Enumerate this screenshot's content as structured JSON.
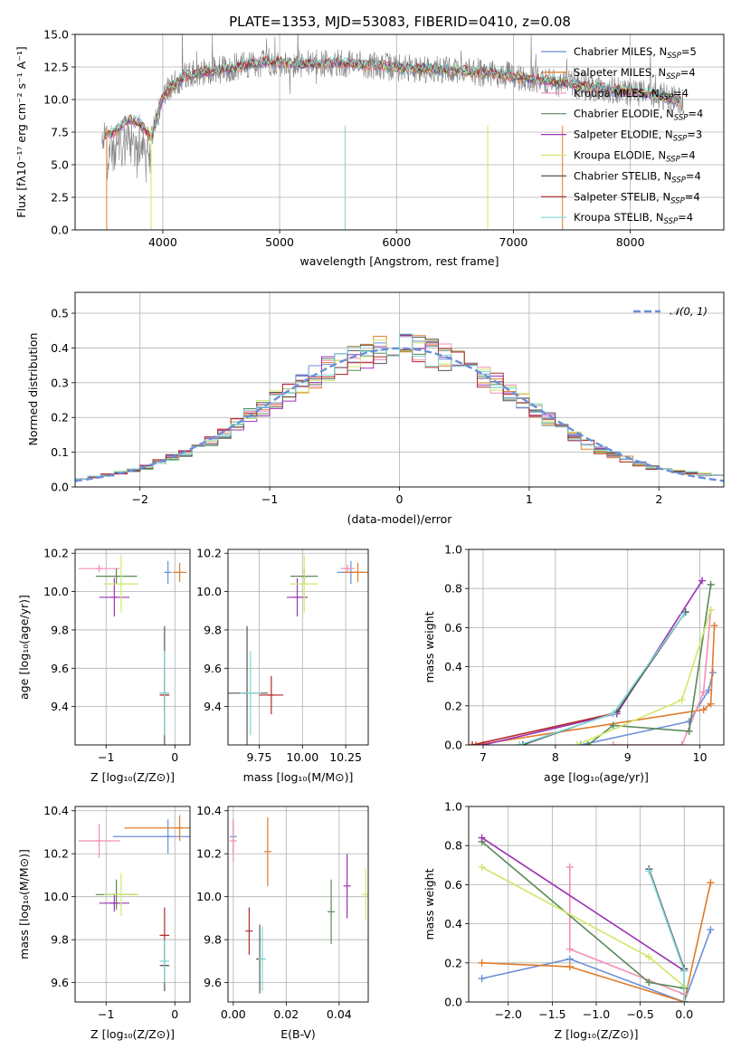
{
  "header": {
    "title": "PLATE=1353, MJD=53083, FIBERID=0410, z=0.08"
  },
  "colors": {
    "Chabrier MILES": "#6a8fd8",
    "Salpeter MILES": "#e07b2a",
    "Kroupa MILES": "#f28fb8",
    "Chabrier ELODIE": "#5a8a5a",
    "Salpeter ELODIE": "#9b33b3",
    "Kroupa ELODIE": "#cfe86a",
    "Chabrier STELIB": "#555555",
    "Salpeter STELIB": "#b52a2a",
    "Kroupa STELIB": "#7fd6d6",
    "data": "#808080",
    "normal": "#6a8fd8",
    "grid": "#b0b0b0"
  },
  "chart_data": [
    {
      "type": "line",
      "title": "PLATE=1353, MJD=53083, FIBERID=0410, z=0.08",
      "xlabel": "wavelength [Angstrom, rest frame]",
      "ylabel": "Flux [fλ10⁻¹⁷ erg cm⁻² s⁻¹ A⁻¹]",
      "xlim": [
        3250,
        8800
      ],
      "ylim": [
        0,
        15
      ],
      "xticks": [
        4000,
        5000,
        6000,
        7000,
        8000
      ],
      "yticks": [
        0.0,
        2.5,
        5.0,
        7.5,
        10.0,
        12.5,
        15.0
      ],
      "legend_position": "top-right",
      "series": [
        {
          "name": "Chabrier MILES, N_SSP=5",
          "legend_main": "Chabrier MILES, N",
          "legend_sub": "SSP",
          "legend_tail": "=5"
        },
        {
          "name": "Salpeter MILES, N_SSP=4",
          "legend_main": "Salpeter MILES, N",
          "legend_sub": "SSP",
          "legend_tail": "=4"
        },
        {
          "name": "Kroupa MILES, N_SSP=4",
          "legend_main": "Kroupa MILES, N",
          "legend_sub": "SSP",
          "legend_tail": "=4"
        },
        {
          "name": "Chabrier ELODIE, N_SSP=4",
          "legend_main": "Chabrier ELODIE, N",
          "legend_sub": "SSP",
          "legend_tail": "=4"
        },
        {
          "name": "Salpeter ELODIE, N_SSP=3",
          "legend_main": "Salpeter ELODIE, N",
          "legend_sub": "SSP",
          "legend_tail": "=3"
        },
        {
          "name": "Kroupa ELODIE, N_SSP=4",
          "legend_main": "Kroupa ELODIE, N",
          "legend_sub": "SSP",
          "legend_tail": "=4"
        },
        {
          "name": "Chabrier STELIB, N_SSP=4",
          "legend_main": "Chabrier STELIB, N",
          "legend_sub": "SSP",
          "legend_tail": "=4"
        },
        {
          "name": "Salpeter STELIB, N_SSP=4",
          "legend_main": "Salpeter STELIB, N",
          "legend_sub": "SSP",
          "legend_tail": "=4"
        },
        {
          "name": "Kroupa STELIB, N_SSP=4",
          "legend_main": "Kroupa STELIB, N",
          "legend_sub": "SSP",
          "legend_tail": "=4"
        }
      ],
      "continuum": {
        "x": [
          3500,
          3600,
          3700,
          3800,
          3900,
          4000,
          4100,
          4200,
          4300,
          4500,
          4700,
          4900,
          5200,
          5500,
          5800,
          6100,
          6400,
          6700,
          7000,
          7300,
          7600,
          7900,
          8100,
          8300,
          8450
        ],
        "y": [
          7.2,
          7.6,
          8.5,
          8.2,
          7.0,
          10.2,
          11.2,
          11.8,
          12.0,
          12.3,
          12.6,
          12.9,
          12.7,
          12.8,
          12.6,
          12.4,
          12.3,
          12.1,
          11.8,
          11.4,
          11.0,
          10.7,
          10.5,
          10.2,
          9.8
        ]
      }
    },
    {
      "type": "step",
      "xlabel": "(data-model)/error",
      "ylabel": "Normed distribution",
      "xlim": [
        -2.5,
        2.5
      ],
      "ylim": [
        0,
        0.56
      ],
      "xticks": [
        -2,
        -1,
        0,
        1,
        2
      ],
      "yticks": [
        0.0,
        0.1,
        0.2,
        0.3,
        0.4,
        0.5
      ],
      "legend": "𝒩(0, 1)",
      "legend_position": "top-right",
      "normal_reference": {
        "mean": 0,
        "std": 1
      },
      "bin_width": 0.1,
      "histogram_shape": {
        "x": [
          -2.5,
          -2.0,
          -1.5,
          -1.0,
          -0.5,
          0.0,
          0.5,
          1.0,
          1.5,
          2.0,
          2.5
        ],
        "y": [
          0.02,
          0.05,
          0.12,
          0.24,
          0.35,
          0.41,
          0.36,
          0.23,
          0.11,
          0.05,
          0.03
        ]
      }
    },
    {
      "type": "errorbar",
      "xlabel": "Z [log₁₀(Z/Z⊙)]",
      "ylabel": "age  [log₁₀(age/yr)]",
      "xlim": [
        -1.45,
        0.22
      ],
      "ylim": [
        9.2,
        10.22
      ],
      "xticks": [
        -1,
        0
      ],
      "yticks": [
        9.4,
        9.6,
        9.8,
        10.0,
        10.2
      ],
      "points": [
        {
          "series": "Chabrier MILES",
          "x": -0.1,
          "y": 10.1,
          "xerr": 0.05,
          "yerr": 0.06
        },
        {
          "series": "Salpeter MILES",
          "x": 0.07,
          "y": 10.1,
          "xerr": 0.1,
          "yerr": 0.05
        },
        {
          "series": "Kroupa MILES",
          "x": -1.1,
          "y": 10.12,
          "xerr": 0.3,
          "yerr": 0.02
        },
        {
          "series": "Chabrier ELODIE",
          "x": -0.85,
          "y": 10.08,
          "xerr": 0.3,
          "yerr": 0.04
        },
        {
          "series": "Salpeter ELODIE",
          "x": -0.88,
          "y": 9.97,
          "xerr": 0.22,
          "yerr": 0.1
        },
        {
          "series": "Kroupa ELODIE",
          "x": -0.78,
          "y": 10.04,
          "xerr": 0.25,
          "yerr": 0.15
        },
        {
          "series": "Chabrier STELIB",
          "x": -0.15,
          "y": 9.47,
          "xerr": 0.07,
          "yerr": 0.35
        },
        {
          "series": "Salpeter STELIB",
          "x": -0.15,
          "y": 9.46,
          "xerr": 0.07,
          "yerr": 0.1
        },
        {
          "series": "Kroupa STELIB",
          "x": -0.15,
          "y": 9.47,
          "xerr": 0.07,
          "yerr": 0.22
        }
      ]
    },
    {
      "type": "errorbar",
      "xlabel": "mass [log₁₀(M/M⊙)]",
      "xlim": [
        9.57,
        10.38
      ],
      "ylim": [
        9.2,
        10.22
      ],
      "xticks": [
        9.75,
        10.0,
        10.25
      ],
      "xticklabels": [
        "9.75",
        "10.00",
        "10.25"
      ],
      "yticks": [
        9.4,
        9.6,
        9.8,
        10.0,
        10.2
      ],
      "points": [
        {
          "series": "Chabrier MILES",
          "x": 10.28,
          "y": 10.1,
          "xerr": 0.08,
          "yerr": 0.06
        },
        {
          "series": "Salpeter MILES",
          "x": 10.32,
          "y": 10.1,
          "xerr": 0.08,
          "yerr": 0.05
        },
        {
          "series": "Kroupa MILES",
          "x": 10.26,
          "y": 10.12,
          "xerr": 0.04,
          "yerr": 0.02
        },
        {
          "series": "Chabrier ELODIE",
          "x": 10.01,
          "y": 10.08,
          "xerr": 0.08,
          "yerr": 0.04
        },
        {
          "series": "Salpeter ELODIE",
          "x": 9.97,
          "y": 9.97,
          "xerr": 0.06,
          "yerr": 0.1
        },
        {
          "series": "Kroupa ELODIE",
          "x": 10.01,
          "y": 10.04,
          "xerr": 0.08,
          "yerr": 0.15
        },
        {
          "series": "Chabrier STELIB",
          "x": 9.68,
          "y": 9.47,
          "xerr": 0.12,
          "yerr": 0.35
        },
        {
          "series": "Salpeter STELIB",
          "x": 9.82,
          "y": 9.46,
          "xerr": 0.07,
          "yerr": 0.1
        },
        {
          "series": "Kroupa STELIB",
          "x": 9.7,
          "y": 9.47,
          "xerr": 0.06,
          "yerr": 0.22
        }
      ]
    },
    {
      "type": "line",
      "xlabel": "age  [log₁₀(age/yr)]",
      "ylabel": "mass weight",
      "xlim": [
        6.8,
        10.33
      ],
      "ylim": [
        0,
        1.0
      ],
      "xticks": [
        7,
        8,
        9,
        10
      ],
      "yticks": [
        0.0,
        0.2,
        0.4,
        0.6,
        0.8,
        1.0
      ],
      "series": [
        {
          "name": "Chabrier MILES",
          "x": [
            8.35,
            9.85,
            10.12,
            10.18
          ],
          "y": [
            0.0,
            0.12,
            0.28,
            0.37
          ]
        },
        {
          "name": "Salpeter MILES",
          "x": [
            6.9,
            10.05,
            10.15,
            10.2
          ],
          "y": [
            0.0,
            0.18,
            0.21,
            0.61
          ]
        },
        {
          "name": "Kroupa MILES",
          "x": [
            8.8,
            9.75,
            10.05,
            10.15
          ],
          "y": [
            0.0,
            0.0,
            0.27,
            0.69
          ]
        },
        {
          "name": "Chabrier ELODIE",
          "x": [
            8.45,
            8.8,
            9.85,
            10.15
          ],
          "y": [
            0.0,
            0.1,
            0.07,
            0.82
          ]
        },
        {
          "name": "Salpeter ELODIE",
          "x": [
            7.0,
            8.85,
            10.03
          ],
          "y": [
            0.0,
            0.16,
            0.84
          ]
        },
        {
          "name": "Kroupa ELODIE",
          "x": [
            8.3,
            9.75,
            10.15
          ],
          "y": [
            0.0,
            0.23,
            0.69
          ]
        },
        {
          "name": "Chabrier STELIB",
          "x": [
            7.55,
            8.85,
            9.8
          ],
          "y": [
            0.0,
            0.17,
            0.68
          ]
        },
        {
          "name": "Salpeter STELIB",
          "x": [
            6.85,
            8.8
          ],
          "y": [
            0.0,
            0.16
          ]
        },
        {
          "name": "Kroupa STELIB",
          "x": [
            7.5,
            8.8,
            9.78
          ],
          "y": [
            0.0,
            0.16,
            0.67
          ]
        }
      ]
    },
    {
      "type": "errorbar",
      "xlabel": "Z [log₁₀(Z/Z⊙)]",
      "ylabel": "mass [log₁₀(M/M⊙)]",
      "xlim": [
        -1.45,
        0.22
      ],
      "ylim": [
        9.51,
        10.42
      ],
      "xticks": [
        -1,
        0
      ],
      "yticks": [
        9.6,
        9.8,
        10.0,
        10.2,
        10.4
      ],
      "points": [
        {
          "series": "Chabrier MILES",
          "x": -0.1,
          "y": 10.28,
          "xerr": 0.8,
          "yerr": 0.08
        },
        {
          "series": "Salpeter MILES",
          "x": 0.07,
          "y": 10.32,
          "xerr": 0.8,
          "yerr": 0.06
        },
        {
          "series": "Kroupa MILES",
          "x": -1.1,
          "y": 10.26,
          "xerr": 0.3,
          "yerr": 0.08
        },
        {
          "series": "Chabrier ELODIE",
          "x": -0.85,
          "y": 10.01,
          "xerr": 0.3,
          "yerr": 0.07
        },
        {
          "series": "Salpeter ELODIE",
          "x": -0.88,
          "y": 9.97,
          "xerr": 0.22,
          "yerr": 0.04
        },
        {
          "series": "Kroupa ELODIE",
          "x": -0.78,
          "y": 10.01,
          "xerr": 0.25,
          "yerr": 0.1
        },
        {
          "series": "Chabrier STELIB",
          "x": -0.15,
          "y": 9.68,
          "xerr": 0.07,
          "yerr": 0.12
        },
        {
          "series": "Salpeter STELIB",
          "x": -0.15,
          "y": 9.82,
          "xerr": 0.07,
          "yerr": 0.13
        },
        {
          "series": "Kroupa STELIB",
          "x": -0.15,
          "y": 9.7,
          "xerr": 0.07,
          "yerr": 0.1
        }
      ]
    },
    {
      "type": "errorbar",
      "xlabel": "E(B-V)",
      "xlim": [
        -0.002,
        0.051
      ],
      "ylim": [
        9.51,
        10.42
      ],
      "xticks": [
        0.0,
        0.02,
        0.04
      ],
      "xticklabels": [
        "0.00",
        "0.02",
        "0.04"
      ],
      "yticks": [
        9.6,
        9.8,
        10.0,
        10.2,
        10.4
      ],
      "points": [
        {
          "series": "Chabrier MILES",
          "x": 0.0,
          "y": 10.28,
          "xerr": 0,
          "yerr": 0.08
        },
        {
          "series": "Salpeter MILES",
          "x": 0.013,
          "y": 10.21,
          "xerr": 0,
          "yerr": 0.16
        },
        {
          "series": "Kroupa MILES",
          "x": 0.0,
          "y": 10.26,
          "xerr": 0,
          "yerr": 0.1
        },
        {
          "series": "Chabrier ELODIE",
          "x": 0.037,
          "y": 9.93,
          "xerr": 0,
          "yerr": 0.15
        },
        {
          "series": "Salpeter ELODIE",
          "x": 0.043,
          "y": 10.05,
          "xerr": 0,
          "yerr": 0.15
        },
        {
          "series": "Kroupa ELODIE",
          "x": 0.05,
          "y": 10.01,
          "xerr": 0,
          "yerr": 0.12
        },
        {
          "series": "Chabrier STELIB",
          "x": 0.01,
          "y": 9.71,
          "xerr": 0,
          "yerr": 0.16
        },
        {
          "series": "Salpeter STELIB",
          "x": 0.006,
          "y": 9.84,
          "xerr": 0,
          "yerr": 0.11
        },
        {
          "series": "Kroupa STELIB",
          "x": 0.011,
          "y": 9.71,
          "xerr": 0,
          "yerr": 0.15
        }
      ]
    },
    {
      "type": "line",
      "xlabel": "Z [log₁₀(Z/Z⊙)]",
      "ylabel": "mass weight",
      "xlim": [
        -2.45,
        0.45
      ],
      "ylim": [
        0,
        1.0
      ],
      "xticks": [
        -2.0,
        -1.5,
        -1.0,
        -0.5,
        0.0
      ],
      "xticklabels": [
        "−2.0",
        "−1.5",
        "−1.0",
        "−0.5",
        "0.0"
      ],
      "yticks": [
        0.0,
        0.2,
        0.4,
        0.6,
        0.8,
        1.0
      ],
      "series": [
        {
          "name": "Chabrier MILES",
          "x": [
            -2.3,
            -1.3,
            0.0,
            0.3
          ],
          "y": [
            0.12,
            0.22,
            0.0,
            0.37
          ]
        },
        {
          "name": "Salpeter MILES",
          "x": [
            -2.3,
            -1.3,
            0.0,
            0.3
          ],
          "y": [
            0.2,
            0.18,
            0.0,
            0.61
          ]
        },
        {
          "name": "Kroupa MILES",
          "x": [
            -1.3,
            -1.3,
            0.0,
            0.0
          ],
          "y": [
            0.69,
            0.27,
            0.04,
            0.0
          ]
        },
        {
          "name": "Chabrier ELODIE",
          "x": [
            -2.3,
            -0.4,
            0.0
          ],
          "y": [
            0.82,
            0.1,
            0.07
          ]
        },
        {
          "name": "Salpeter ELODIE",
          "x": [
            -2.3,
            0.0
          ],
          "y": [
            0.84,
            0.16
          ]
        },
        {
          "name": "Kroupa ELODIE",
          "x": [
            -2.3,
            -0.4,
            0.0
          ],
          "y": [
            0.69,
            0.23,
            0.08
          ]
        },
        {
          "name": "Chabrier STELIB",
          "x": [
            -0.4,
            0.0,
            0.0
          ],
          "y": [
            0.68,
            0.17,
            0.0
          ]
        },
        {
          "name": "Salpeter STELIB",
          "x": [
            0.0
          ],
          "y": [
            0.16
          ]
        },
        {
          "name": "Kroupa STELIB",
          "x": [
            -0.4,
            0.0,
            0.0
          ],
          "y": [
            0.67,
            0.16,
            0.0
          ]
        }
      ]
    }
  ]
}
